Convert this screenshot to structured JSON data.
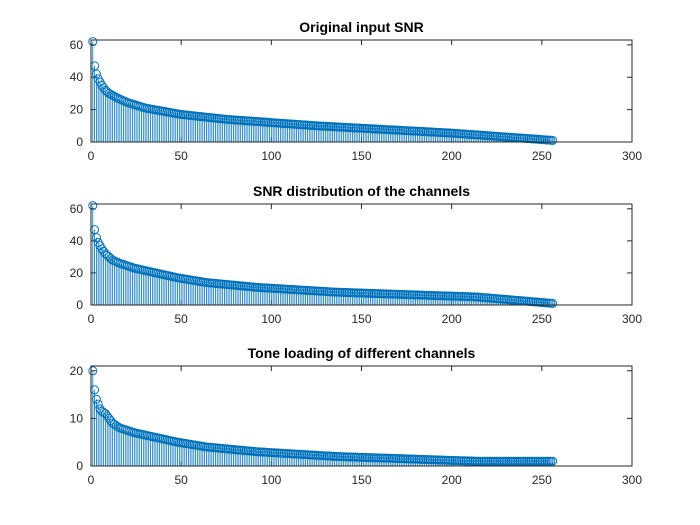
{
  "colors": {
    "series": "#0072BD",
    "axis": "#262626",
    "background": "#ffffff"
  },
  "chart_data": [
    {
      "type": "stem",
      "title": "Original input SNR",
      "xlabel": "",
      "ylabel": "",
      "xlim": [
        0,
        300
      ],
      "ylim": [
        0,
        63
      ],
      "xticks": [
        0,
        50,
        100,
        150,
        200,
        250,
        300
      ],
      "yticks": [
        0,
        20,
        40,
        60
      ],
      "n_points": 256,
      "curve_samples": [
        [
          1,
          62
        ],
        [
          2,
          47
        ],
        [
          3,
          42
        ],
        [
          4,
          39
        ],
        [
          5,
          37
        ],
        [
          6,
          35
        ],
        [
          8,
          32
        ],
        [
          10,
          30
        ],
        [
          15,
          27
        ],
        [
          20,
          24.5
        ],
        [
          30,
          21
        ],
        [
          40,
          19
        ],
        [
          50,
          17
        ],
        [
          75,
          14
        ],
        [
          100,
          12
        ],
        [
          125,
          10
        ],
        [
          150,
          8.5
        ],
        [
          175,
          7
        ],
        [
          200,
          5.5
        ],
        [
          225,
          3.5
        ],
        [
          250,
          1.5
        ],
        [
          256,
          1
        ]
      ]
    },
    {
      "type": "stem",
      "title": "SNR distribution of the channels",
      "xlabel": "",
      "ylabel": "",
      "xlim": [
        0,
        300
      ],
      "ylim": [
        0,
        63
      ],
      "xticks": [
        0,
        50,
        100,
        150,
        200,
        250,
        300
      ],
      "yticks": [
        0,
        20,
        40,
        60
      ],
      "n_points": 256,
      "curve_samples": [
        [
          1,
          62
        ],
        [
          2,
          47
        ],
        [
          3,
          42
        ],
        [
          4,
          39
        ],
        [
          5,
          37
        ],
        [
          6,
          35
        ],
        [
          8,
          32
        ],
        [
          10,
          30
        ],
        [
          12,
          28
        ],
        [
          16,
          26
        ],
        [
          24,
          23
        ],
        [
          36,
          20
        ],
        [
          48,
          17
        ],
        [
          64,
          14
        ],
        [
          92,
          11
        ],
        [
          136,
          8
        ],
        [
          214,
          5
        ],
        [
          256,
          1
        ]
      ]
    },
    {
      "type": "stem",
      "title": "Tone loading of different channels",
      "xlabel": "",
      "ylabel": "",
      "xlim": [
        0,
        300
      ],
      "ylim": [
        0,
        21
      ],
      "xticks": [
        0,
        50,
        100,
        150,
        200,
        250,
        300
      ],
      "yticks": [
        0,
        10,
        20
      ],
      "n_points": 256,
      "curve_samples": [
        [
          1,
          20
        ],
        [
          2,
          16
        ],
        [
          3,
          14
        ],
        [
          4,
          13
        ],
        [
          5,
          12
        ],
        [
          6,
          11.5
        ],
        [
          8,
          11
        ],
        [
          10,
          10
        ],
        [
          12,
          9
        ],
        [
          16,
          8
        ],
        [
          24,
          7
        ],
        [
          36,
          6
        ],
        [
          48,
          5
        ],
        [
          64,
          4
        ],
        [
          92,
          3
        ],
        [
          136,
          2
        ],
        [
          214,
          1
        ],
        [
          256,
          1
        ]
      ]
    }
  ]
}
